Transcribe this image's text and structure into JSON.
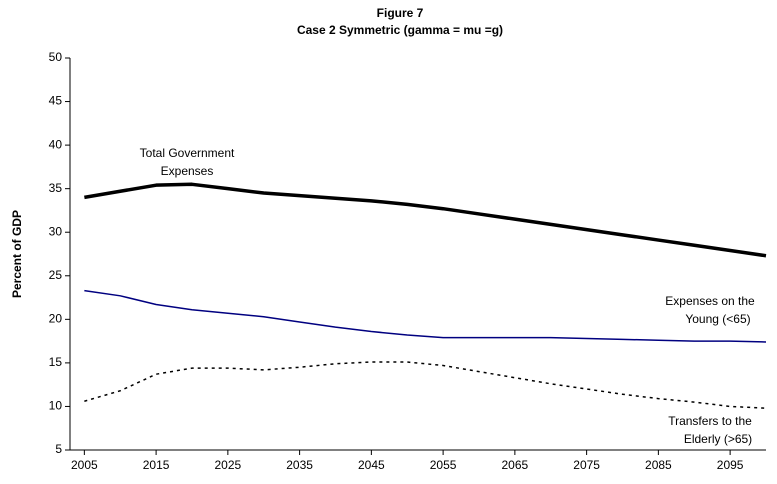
{
  "chart_data": {
    "type": "line",
    "title": [
      "Figure 7",
      "Case 2 Symmetric (gamma = mu =g)"
    ],
    "y_label": "Percent of GDP",
    "x": [
      2005,
      2010,
      2015,
      2020,
      2025,
      2030,
      2035,
      2040,
      2045,
      2050,
      2055,
      2060,
      2065,
      2070,
      2075,
      2080,
      2085,
      2090,
      2095,
      2100
    ],
    "series": [
      {
        "color": "#000000",
        "style": "thick",
        "values": [
          34.0,
          34.7,
          35.4,
          35.5,
          35.0,
          34.5,
          34.2,
          33.9,
          33.6,
          33.2,
          32.7,
          32.1,
          31.5,
          30.9,
          30.3,
          29.7,
          29.1,
          28.5,
          27.9,
          27.3
        ]
      },
      {
        "color": "#000080",
        "style": "solid",
        "values": [
          23.3,
          22.7,
          21.7,
          21.1,
          20.7,
          20.3,
          19.7,
          19.1,
          18.6,
          18.2,
          17.9,
          17.9,
          17.9,
          17.9,
          17.8,
          17.7,
          17.6,
          17.5,
          17.5,
          17.4
        ]
      },
      {
        "color": "#000000",
        "style": "dotted",
        "values": [
          10.6,
          11.8,
          13.7,
          14.4,
          14.4,
          14.2,
          14.5,
          14.9,
          15.1,
          15.1,
          14.7,
          14.0,
          13.3,
          12.6,
          12.0,
          11.4,
          10.9,
          10.5,
          10.0,
          9.8
        ]
      }
    ],
    "annotations": [
      {
        "lines": [
          "Total Government",
          "Expenses"
        ]
      },
      {
        "lines": [
          "Expenses on the",
          "Young (<65)"
        ]
      },
      {
        "lines": [
          "Transfers to the",
          "Elderly (>65)"
        ]
      }
    ],
    "xlim": [
      2003,
      2100
    ],
    "xticks": [
      2005,
      2015,
      2025,
      2035,
      2045,
      2055,
      2065,
      2075,
      2085,
      2095
    ],
    "ylim": [
      5,
      50
    ],
    "yticks": [
      5,
      10,
      15,
      20,
      25,
      30,
      35,
      40,
      45,
      50
    ],
    "grid": false
  }
}
